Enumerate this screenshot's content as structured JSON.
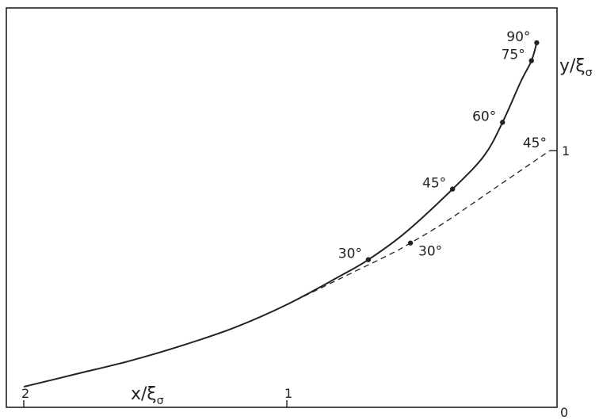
{
  "chart_data": {
    "type": "line",
    "xlabel_main": "x/ξ",
    "xlabel_sub": "σ",
    "ylabel_main": "y/ξ",
    "ylabel_sub": "σ",
    "x_direction": "reversed",
    "xlim": [
      0,
      2.0
    ],
    "ylim": [
      0,
      1.45
    ],
    "x_ticks": [
      {
        "value": 2,
        "label": "2"
      },
      {
        "value": 1,
        "label": "1"
      },
      {
        "value": 0,
        "label": "0"
      }
    ],
    "y_ticks": [
      {
        "value": 1,
        "label": "1"
      }
    ],
    "series": [
      {
        "style": "solid",
        "points": [
          {
            "x": 2.0,
            "y": 0.08
          },
          {
            "x": 1.8,
            "y": 0.13
          },
          {
            "x": 1.6,
            "y": 0.18
          },
          {
            "x": 1.4,
            "y": 0.24
          },
          {
            "x": 1.2,
            "y": 0.31
          },
          {
            "x": 1.0,
            "y": 0.4
          },
          {
            "x": 0.8,
            "y": 0.51
          },
          {
            "x": 0.69,
            "y": 0.575
          },
          {
            "x": 0.55,
            "y": 0.68
          },
          {
            "x": 0.37,
            "y": 0.85
          },
          {
            "x": 0.25,
            "y": 0.98
          },
          {
            "x": 0.18,
            "y": 1.11
          },
          {
            "x": 0.11,
            "y": 1.27
          },
          {
            "x": 0.07,
            "y": 1.35
          },
          {
            "x": 0.05,
            "y": 1.42
          }
        ],
        "markers": [
          {
            "x": 0.69,
            "y": 0.575,
            "label": "30°"
          },
          {
            "x": 0.37,
            "y": 0.85,
            "label": "45°"
          },
          {
            "x": 0.18,
            "y": 1.11,
            "label": "60°"
          },
          {
            "x": 0.07,
            "y": 1.35,
            "label": "75°"
          },
          {
            "x": 0.05,
            "y": 1.42,
            "label": "90°"
          }
        ]
      },
      {
        "style": "dashed",
        "points": [
          {
            "x": 1.0,
            "y": 0.4
          },
          {
            "x": 0.8,
            "y": 0.5
          },
          {
            "x": 0.6,
            "y": 0.6
          },
          {
            "x": 0.53,
            "y": 0.64
          },
          {
            "x": 0.4,
            "y": 0.72
          },
          {
            "x": 0.2,
            "y": 0.86
          },
          {
            "x": 0.0,
            "y": 1.0
          }
        ],
        "markers": [
          {
            "x": 0.53,
            "y": 0.64,
            "label": "30°"
          },
          {
            "x": 0.0,
            "y": 1.0,
            "label": "45°"
          }
        ]
      }
    ]
  }
}
